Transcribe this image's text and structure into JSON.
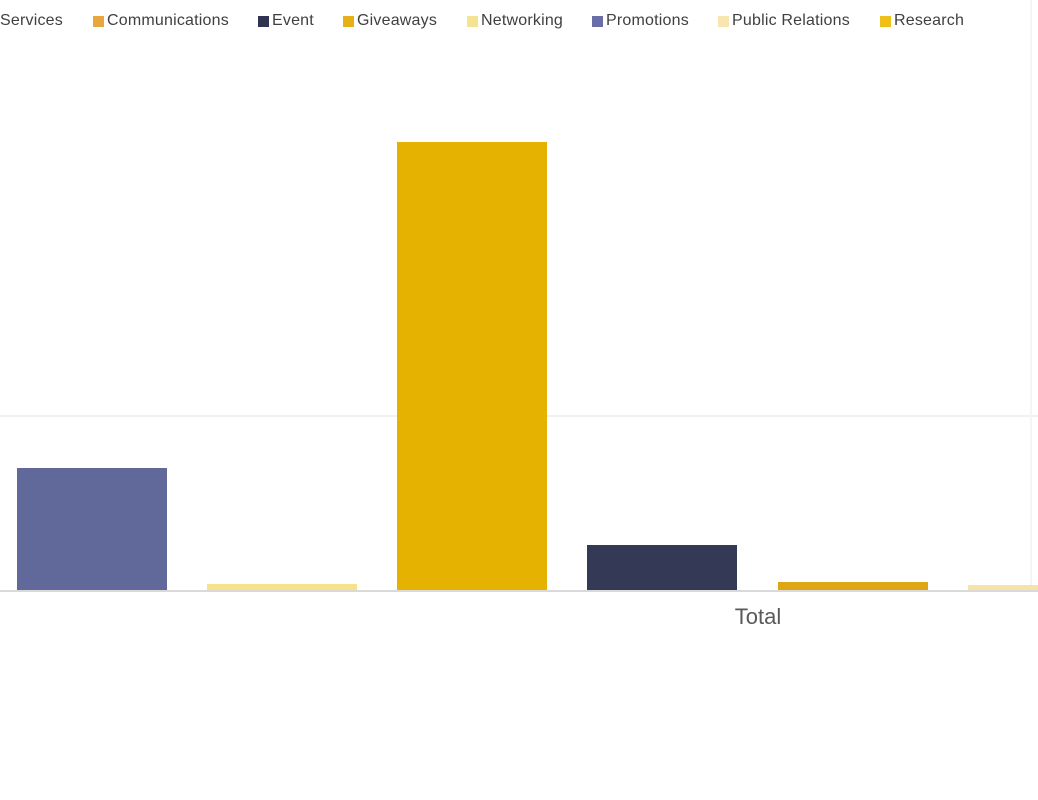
{
  "legend": {
    "items": [
      {
        "label": "Services",
        "color": ""
      },
      {
        "label": "Communications",
        "color": "#E8A73C"
      },
      {
        "label": "Event",
        "color": "#2F3550"
      },
      {
        "label": "Giveaways",
        "color": "#E5B117"
      },
      {
        "label": "Networking",
        "color": "#F4E391"
      },
      {
        "label": "Promotions",
        "color": "#6A6DA8"
      },
      {
        "label": "Public Relations",
        "color": "#F7E6B0"
      },
      {
        "label": "Research",
        "color": "#EFC01A"
      }
    ]
  },
  "chart_data": {
    "type": "bar",
    "title": "",
    "xlabel": "",
    "ylabel": "",
    "categories": [
      "Total"
    ],
    "series": [
      {
        "name": "Promotions",
        "values": [
          122
        ],
        "color": "#61689A"
      },
      {
        "name": "Networking",
        "values": [
          6
        ],
        "color": "#F7E18A"
      },
      {
        "name": "Giveaways",
        "values": [
          448
        ],
        "color": "#E5B201"
      },
      {
        "name": "Event",
        "values": [
          45
        ],
        "color": "#343A56"
      },
      {
        "name": "Communications",
        "values": [
          8
        ],
        "color": "#DFA614"
      },
      {
        "name": "Public Relations",
        "values": [
          5
        ],
        "color": "#F5E3A7"
      }
    ],
    "ylim": [
      0,
      590
    ],
    "grid": "single faint horizontal gridline, no numeric value-axis labels visible",
    "legend_position": "top",
    "legend_entries": [
      "Services",
      "Communications",
      "Event",
      "Giveaways",
      "Networking",
      "Promotions",
      "Public Relations",
      "Research"
    ],
    "note": "values are bar heights in screen pixels (no value axis shown); first legend entry and the rightmost bar are clipped by the viewport edges"
  },
  "axis": {
    "category_label": "Total"
  }
}
